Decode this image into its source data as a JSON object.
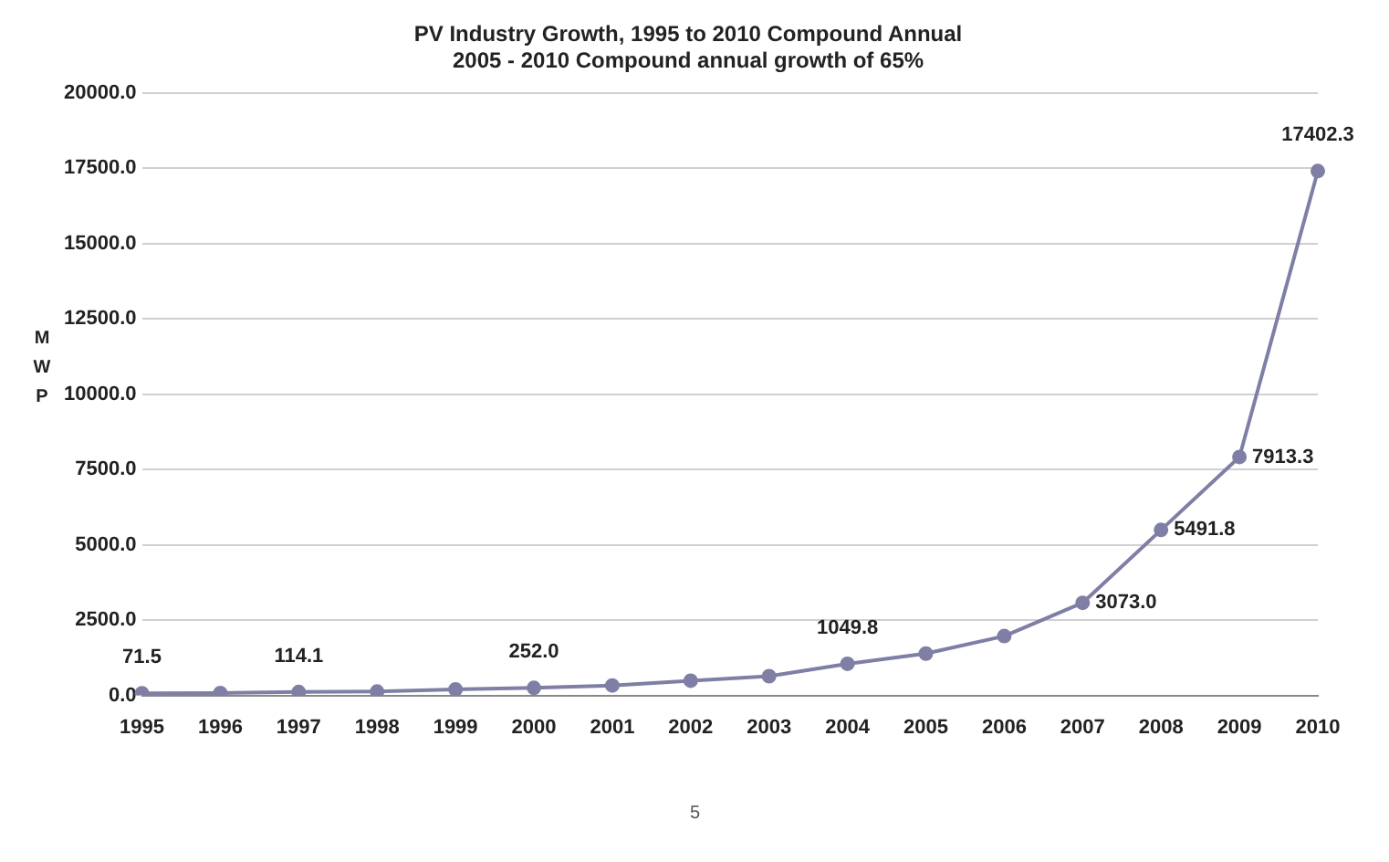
{
  "chart_data": {
    "type": "line",
    "title": [
      "PV Industry Growth, 1995 to 2010 Compound Annual",
      "2005 - 2010 Compound annual growth of 65%"
    ],
    "ylabel": "MWP",
    "categories": [
      "1995",
      "1996",
      "1997",
      "1998",
      "1999",
      "2000",
      "2001",
      "2002",
      "2003",
      "2004",
      "2005",
      "2006",
      "2007",
      "2008",
      "2009",
      "2010"
    ],
    "series": [
      {
        "color": "#7f7fa6",
        "values": [
          71.5,
          80,
          114.1,
          130,
          200,
          252.0,
          330,
          490,
          640,
          1049.8,
          1390,
          1970,
          3073.0,
          5491.8,
          7913.3,
          17402.3
        ],
        "value_labels": [
          "71.5",
          null,
          "114.1",
          null,
          null,
          "252.0",
          null,
          null,
          null,
          "1049.8",
          null,
          null,
          "3073.0",
          "5491.8",
          "7913.3",
          "17402.3"
        ]
      }
    ],
    "ylim": [
      0,
      20000
    ],
    "yticks": [
      {
        "value": 0,
        "label": "0.0"
      },
      {
        "value": 2500,
        "label": "2500.0"
      },
      {
        "value": 5000,
        "label": "5000.0"
      },
      {
        "value": 7500,
        "label": "7500.0"
      },
      {
        "value": 10000,
        "label": "10000.0"
      },
      {
        "value": 12500,
        "label": "12500.0"
      },
      {
        "value": 15000,
        "label": "15000.0"
      },
      {
        "value": 17500,
        "label": "17500.0"
      },
      {
        "value": 20000,
        "label": "20000.0"
      }
    ],
    "grid": "y",
    "marker": "circle",
    "line_style": "solid",
    "legend": false,
    "annotations": [
      "5"
    ]
  }
}
